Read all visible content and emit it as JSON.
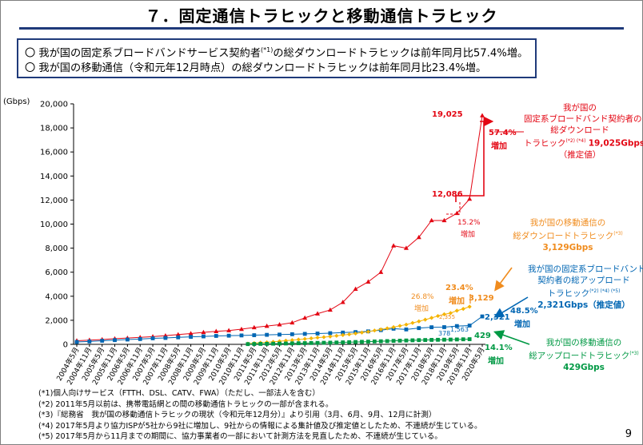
{
  "page": {
    "title": "７．固定通信トラヒックと移動通信トラヒック",
    "page_number": "9",
    "summary": [
      {
        "pre": "〇 我が国の固定系ブロードバンドサービス契約者",
        "sup": "(*1)",
        "post": "の総ダウンロードトラヒックは前年同月比57.4%増。"
      },
      {
        "pre": "〇 我が国の移動通信（令和元年12月時点）の総ダウンロードトラヒックは前年同月比23.4%増。",
        "sup": "",
        "post": ""
      }
    ],
    "notes": [
      "(*1)個人向けサービス（FTTH、DSL、CATV、FWA）（ただし、一部法人を含む）",
      "(*2) 2011年5月以前は、携帯電話網との間の移動通信トラヒックの一部が含まれる。",
      "(*3)『総務省　我が国の移動通信トラヒックの現状（令和元年12月分）』より引用（3月、6月、9月、12月に計測）",
      "(*4) 2017年5月より協力ISPが5社から9社に増加し、9社からの情報による集計値及び推定値としたため、不連続が生じている。",
      "(*5) 2017年5月から11月までの期間に、協力事業者の一部において計測方法を見直したため、不連続が生じている。"
    ],
    "annotations": {
      "fixed_down": {
        "l1": "我が国の",
        "l2": "固定系ブロードバンド契約者の",
        "l3": "総ダウンロード",
        "l4pre": "トラヒック",
        "l4sup": "(*2) (*4)",
        "l4val": "19,025Gbps",
        "l5": "（推定値）"
      },
      "mobile_down": {
        "l1": "我が国の移動通信の",
        "l2pre": "総ダウンロードトラヒック",
        "l2sup": "(*3)",
        "l3": "3,129Gbps"
      },
      "fixed_up": {
        "l1": "我が国の固定系ブロードバンド",
        "l2": "契約者の総アップロード",
        "l3pre": "トラヒック",
        "l3sup": "(*2) (*4) (*5)",
        "l4": "2,321Gbps（推定値）"
      },
      "mobile_up": {
        "l1": "我が国の移動通信の",
        "l2pre": "総アップロードトラヒック",
        "l2sup": "(*3)",
        "l3": "429Gbps"
      }
    },
    "point_labels": {
      "fd_last": "19,025",
      "fd_prev": "12,086",
      "fd_growth": "57.4%",
      "fd_growth2": "増加",
      "fd_mid_growth": "15.2%",
      "fd_mid_growth2": "増加",
      "md_last": "3,129",
      "md_growth": "23.4%",
      "md_growth2": "増加",
      "md_mid_growth": "26.8%",
      "md_mid_growth2": "増加",
      "md_small": "2,355",
      "fu_last": "2,321",
      "fu_growth": "48.5%",
      "fu_growth2": "増加",
      "fu_prev": "1,563",
      "fu_prev2": "378",
      "mu_last": "429",
      "mu_growth": "14.1%",
      "mu_growth2": "増加"
    }
  },
  "chart_data": {
    "type": "line",
    "title": "",
    "ylabel": "(Gbps)",
    "xlabel": "",
    "ylim": [
      0,
      20000
    ],
    "yticks": [
      0,
      2000,
      4000,
      6000,
      8000,
      10000,
      12000,
      14000,
      16000,
      18000,
      20000
    ],
    "ytick_labels": [
      "0",
      "2,000",
      "4,000",
      "6,000",
      "8,000",
      "10,000",
      "12,000",
      "14,000",
      "16,000",
      "18,000",
      "20,000"
    ],
    "categories": [
      "2004年5月",
      "2004年11月",
      "2005年5月",
      "2005年11月",
      "2006年5月",
      "2006年11月",
      "2007年5月",
      "2007年11月",
      "2008年5月",
      "2008年11月",
      "2009年5月",
      "2009年11月",
      "2010年5月",
      "2010年11月",
      "2011年5月",
      "2011年11月",
      "2012年5月",
      "2012年11月",
      "2013年5月",
      "2013年11月",
      "2014年5月",
      "2014年11月",
      "2015年5月",
      "2015年11月",
      "2016年5月",
      "2016年11月",
      "2017年5月",
      "2017年11月",
      "2018年5月",
      "2018年11月",
      "2019年5月",
      "2019年11月",
      "2020年5月"
    ],
    "series": [
      {
        "name": "固定系ブロードバンド契約者の総ダウンロードトラヒック",
        "color": "#e30613",
        "marker": "triangle",
        "points": [
          [
            0,
            300
          ],
          [
            1,
            350
          ],
          [
            2,
            400
          ],
          [
            3,
            470
          ],
          [
            4,
            520
          ],
          [
            5,
            580
          ],
          [
            6,
            640
          ],
          [
            7,
            720
          ],
          [
            8,
            810
          ],
          [
            9,
            900
          ],
          [
            10,
            1000
          ],
          [
            11,
            1080
          ],
          [
            12,
            1150
          ],
          [
            13,
            1260
          ],
          [
            14,
            1400
          ],
          [
            15,
            1520
          ],
          [
            16,
            1640
          ],
          [
            17,
            1800
          ],
          [
            18,
            2200
          ],
          [
            19,
            2550
          ],
          [
            20,
            2860
          ],
          [
            21,
            3500
          ],
          [
            22,
            4600
          ],
          [
            23,
            5200
          ],
          [
            24,
            6000
          ],
          [
            25,
            8200
          ],
          [
            26,
            8000
          ],
          [
            27,
            8900
          ],
          [
            28,
            10300
          ],
          [
            29,
            10300
          ],
          [
            30,
            10900
          ],
          [
            31,
            12086
          ],
          [
            32,
            19025
          ]
        ]
      },
      {
        "name": "固定系ブロードバンド契約者の総アップロードトラヒック",
        "color": "#0066b3",
        "marker": "square",
        "points": [
          [
            0,
            200
          ],
          [
            1,
            240
          ],
          [
            2,
            300
          ],
          [
            3,
            350
          ],
          [
            4,
            400
          ],
          [
            5,
            440
          ],
          [
            6,
            500
          ],
          [
            7,
            530
          ],
          [
            8,
            580
          ],
          [
            9,
            620
          ],
          [
            10,
            660
          ],
          [
            11,
            700
          ],
          [
            12,
            720
          ],
          [
            13,
            740
          ],
          [
            14,
            760
          ],
          [
            15,
            790
          ],
          [
            16,
            810
          ],
          [
            17,
            840
          ],
          [
            18,
            870
          ],
          [
            19,
            900
          ],
          [
            20,
            930
          ],
          [
            21,
            980
          ],
          [
            22,
            1020
          ],
          [
            23,
            1080
          ],
          [
            24,
            1180
          ],
          [
            25,
            1300
          ],
          [
            26,
            1240
          ],
          [
            27,
            1350
          ],
          [
            28,
            1420
          ],
          [
            29,
            1430
          ],
          [
            30,
            1520
          ],
          [
            31,
            1563
          ],
          [
            32,
            2321
          ]
        ]
      },
      {
        "name": "移動通信の総ダウンロードトラヒック",
        "color": "#f5b400",
        "marker": "diamond",
        "points": [
          [
            13.5,
            60
          ],
          [
            14,
            100
          ],
          [
            14.5,
            140
          ],
          [
            15,
            170
          ],
          [
            15.5,
            210
          ],
          [
            16,
            260
          ],
          [
            16.5,
            310
          ],
          [
            17,
            350
          ],
          [
            17.5,
            400
          ],
          [
            18,
            450
          ],
          [
            18.5,
            500
          ],
          [
            19,
            560
          ],
          [
            19.5,
            600
          ],
          [
            20,
            650
          ],
          [
            20.5,
            710
          ],
          [
            21,
            770
          ],
          [
            21.5,
            830
          ],
          [
            22,
            900
          ],
          [
            22.5,
            980
          ],
          [
            23,
            1050
          ],
          [
            23.5,
            1150
          ],
          [
            24,
            1240
          ],
          [
            24.5,
            1330
          ],
          [
            25,
            1430
          ],
          [
            25.5,
            1540
          ],
          [
            26,
            1640
          ],
          [
            26.5,
            1780
          ],
          [
            27,
            1910
          ],
          [
            27.5,
            2050
          ],
          [
            28,
            2200
          ],
          [
            28.5,
            2355
          ],
          [
            29,
            2500
          ],
          [
            29.5,
            2600
          ],
          [
            30,
            2800
          ],
          [
            30.5,
            2950
          ],
          [
            31,
            3129
          ]
        ]
      },
      {
        "name": "移動通信の総アップロードトラヒック",
        "color": "#009944",
        "marker": "square",
        "points": [
          [
            13.5,
            20
          ],
          [
            14,
            30
          ],
          [
            14.5,
            38
          ],
          [
            15,
            45
          ],
          [
            15.5,
            55
          ],
          [
            16,
            62
          ],
          [
            16.5,
            70
          ],
          [
            17,
            80
          ],
          [
            17.5,
            90
          ],
          [
            18,
            100
          ],
          [
            18.5,
            110
          ],
          [
            19,
            120
          ],
          [
            19.5,
            130
          ],
          [
            20,
            140
          ],
          [
            20.5,
            150
          ],
          [
            21,
            165
          ],
          [
            21.5,
            180
          ],
          [
            22,
            195
          ],
          [
            22.5,
            210
          ],
          [
            23,
            225
          ],
          [
            23.5,
            240
          ],
          [
            24,
            255
          ],
          [
            24.5,
            270
          ],
          [
            25,
            290
          ],
          [
            25.5,
            305
          ],
          [
            26,
            320
          ],
          [
            26.5,
            335
          ],
          [
            27,
            350
          ],
          [
            27.5,
            360
          ],
          [
            28,
            370
          ],
          [
            28.5,
            378
          ],
          [
            29,
            385
          ],
          [
            29.5,
            395
          ],
          [
            30,
            405
          ],
          [
            30.5,
            418
          ],
          [
            31,
            429
          ]
        ]
      }
    ]
  }
}
